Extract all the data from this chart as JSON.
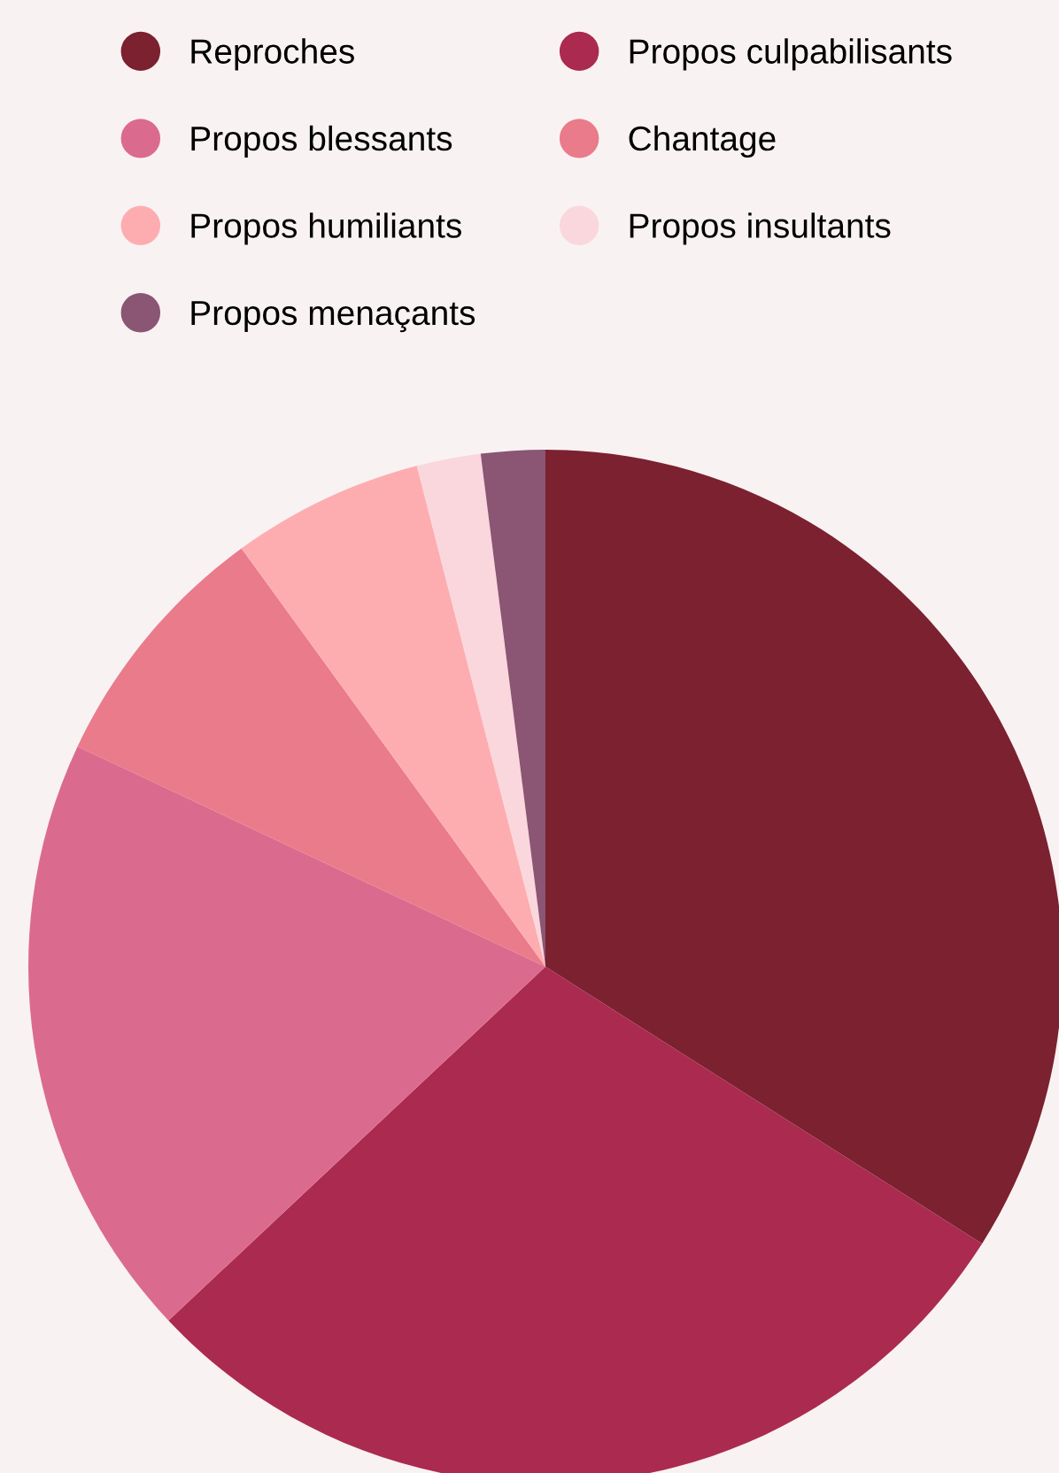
{
  "chart_data": {
    "type": "pie",
    "categories": [
      "Reproches",
      "Propos culpabilisants",
      "Propos blessants",
      "Chantage",
      "Propos humiliants",
      "Propos insultants",
      "Propos menaçants"
    ],
    "values": [
      34,
      29,
      19,
      8,
      6,
      2,
      2
    ],
    "colors": [
      "#7b2130",
      "#ab2a4f",
      "#db6b8e",
      "#ea7b8a",
      "#fdadb0",
      "#fad7dd",
      "#8b5574"
    ],
    "legend": "top",
    "marker": "circle"
  }
}
